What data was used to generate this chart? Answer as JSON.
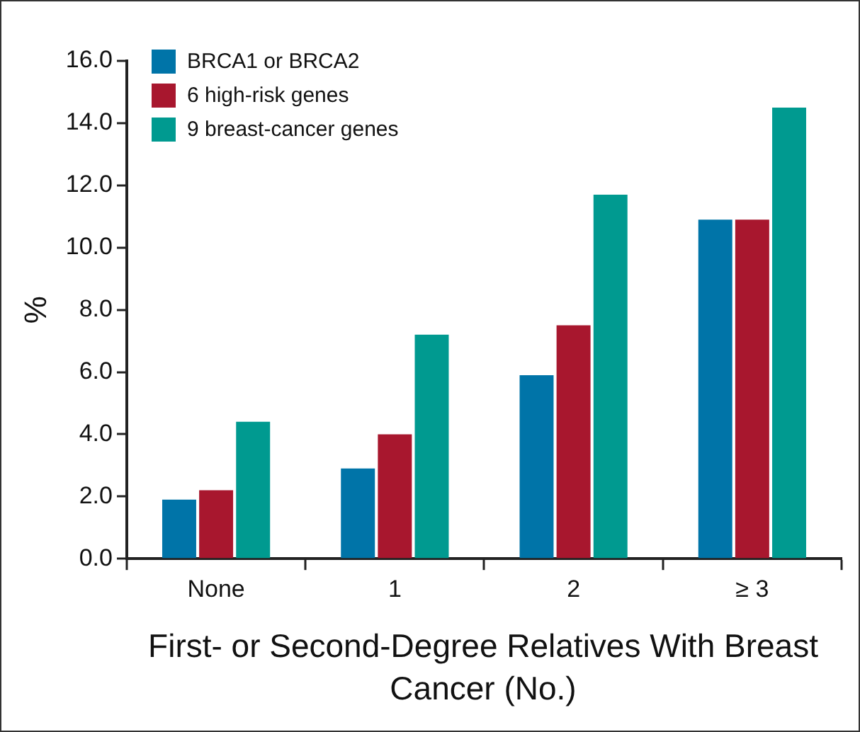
{
  "chart_data": {
    "type": "bar",
    "xlabel": "First- or Second-Degree Relatives With Breast Cancer (No.)",
    "ylabel": "%",
    "categories": [
      "None",
      "1",
      "2",
      "≥ 3"
    ],
    "series": [
      {
        "name": "BRCA1 or BRCA2",
        "color": "#0074a8",
        "values": [
          1.9,
          2.9,
          5.9,
          10.9
        ]
      },
      {
        "name": "6 high-risk genes",
        "color": "#a8172e",
        "values": [
          2.2,
          4.0,
          7.5,
          10.9
        ]
      },
      {
        "name": "9 breast-cancer genes",
        "color": "#009a90",
        "values": [
          4.4,
          7.2,
          11.7,
          14.5
        ]
      }
    ],
    "ylim": [
      0,
      16
    ],
    "yticks": [
      {
        "value": 0,
        "label": "0.0"
      },
      {
        "value": 2,
        "label": "2.0"
      },
      {
        "value": 4,
        "label": "4.0"
      },
      {
        "value": 6,
        "label": "6.0"
      },
      {
        "value": 8,
        "label": "8.0"
      },
      {
        "value": 10,
        "label": "10.0"
      },
      {
        "value": 12,
        "label": "12.0"
      },
      {
        "value": 14,
        "label": "14.0"
      },
      {
        "value": 16,
        "label": "16.0"
      }
    ],
    "grid": false,
    "legend": "top left"
  }
}
